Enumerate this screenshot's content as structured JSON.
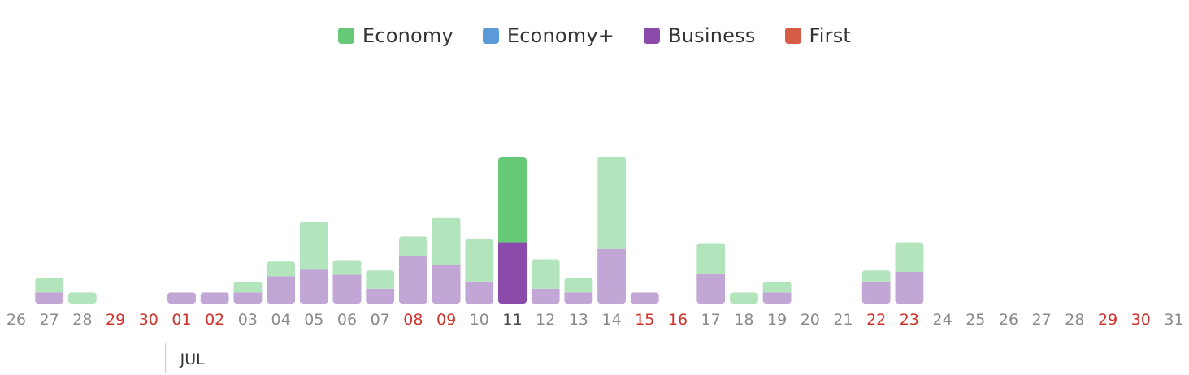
{
  "legend": [
    {
      "label": "Economy",
      "color": "#66c978",
      "icon": "square-swatch"
    },
    {
      "label": "Economy+",
      "color": "#5a9ad8",
      "icon": "square-swatch"
    },
    {
      "label": "Business",
      "color": "#8a4bab",
      "icon": "square-swatch"
    },
    {
      "label": "First",
      "color": "#d65c45",
      "icon": "square-swatch"
    }
  ],
  "chart_data": {
    "type": "bar",
    "stacked": true,
    "title": "",
    "xlabel": "",
    "ylabel": "",
    "month_marker": {
      "label": "JUL",
      "before_category": "01"
    },
    "categories": [
      "26",
      "27",
      "28",
      "29",
      "30",
      "01",
      "02",
      "03",
      "04",
      "05",
      "06",
      "07",
      "08",
      "09",
      "10",
      "11",
      "12",
      "13",
      "14",
      "15",
      "16",
      "17",
      "18",
      "19",
      "20",
      "21",
      "22",
      "23",
      "24",
      "25",
      "26",
      "27",
      "28",
      "29",
      "30",
      "31"
    ],
    "highlighted_categories": [
      "01",
      "02",
      "08",
      "09",
      "15",
      "16",
      "22",
      "23",
      "29",
      "30"
    ],
    "highlight_color": "#d0322b",
    "selected_category": "11",
    "series": [
      {
        "name": "Business",
        "color": "#8a4bab",
        "faded_color": "#c2a6d5",
        "values": [
          0,
          1.5,
          0,
          0,
          0,
          1.5,
          1.5,
          1.5,
          3.7,
          4.6,
          3.9,
          2,
          6.5,
          5.2,
          3,
          8.3,
          2,
          1.5,
          7.4,
          1.5,
          0,
          4,
          0,
          1.5,
          0,
          0,
          3,
          4.3,
          0,
          0,
          0,
          0,
          0,
          0,
          0,
          0
        ]
      },
      {
        "name": "Economy",
        "color": "#66c978",
        "faded_color": "#b3e5bd",
        "values": [
          0,
          2,
          1.5,
          0,
          0,
          0,
          0,
          1.5,
          2,
          6.5,
          2,
          2.5,
          2.6,
          6.5,
          5.7,
          11.5,
          4,
          2,
          12.5,
          0,
          0,
          4.2,
          1.5,
          1.5,
          0,
          0,
          1.5,
          4,
          0,
          0,
          0,
          0,
          0,
          0,
          0,
          0
        ]
      },
      {
        "name": "Economy+",
        "color": "#5a9ad8",
        "faded_color": "#a9c9ec",
        "values": [
          0,
          0,
          0,
          0,
          0,
          0,
          0,
          0,
          0,
          0,
          0,
          0,
          0,
          0,
          0,
          0,
          0,
          0,
          0,
          0,
          0,
          0,
          0,
          0,
          0,
          0,
          0,
          0,
          0,
          0,
          0,
          0,
          0,
          0,
          0,
          0
        ]
      },
      {
        "name": "First",
        "color": "#d65c45",
        "faded_color": "#eba99c",
        "values": [
          0,
          0,
          0,
          0,
          0,
          0,
          0,
          0,
          0,
          0,
          0,
          0,
          0,
          0,
          0,
          0,
          0,
          0,
          0,
          0,
          0,
          0,
          0,
          0,
          0,
          0,
          0,
          0,
          0,
          0,
          0,
          0,
          0,
          0,
          0,
          0
        ]
      }
    ],
    "ylim": [
      0,
      19.8
    ],
    "grid": false,
    "legend_position": "top-center"
  }
}
